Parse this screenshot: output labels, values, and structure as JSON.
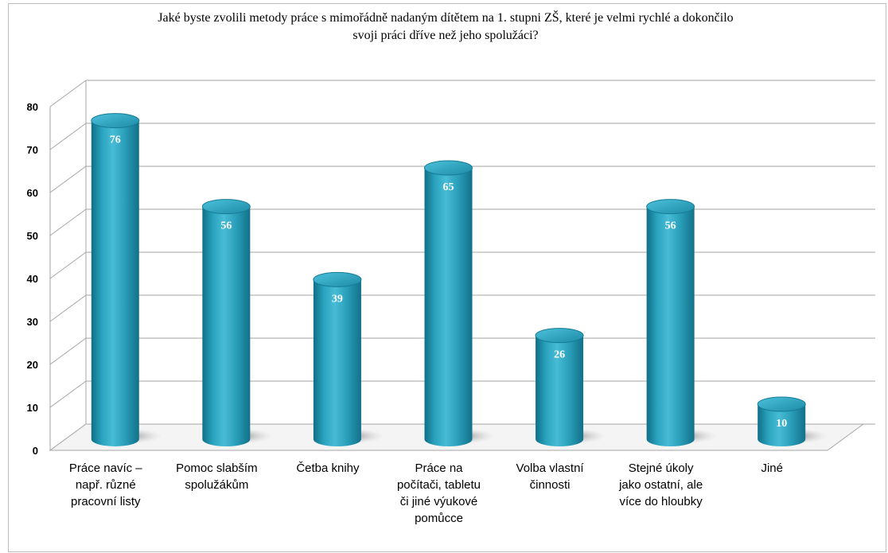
{
  "chart_data": {
    "type": "bar",
    "title_lines": [
      "Jaké byste zvolili metody práce s mimořádně  nadaným dítětem na 1. stupni ZŠ, které je velmi rychlé a dokončilo",
      "svoji práci dříve než jeho spolužáci?"
    ],
    "categories": [
      [
        "Práce navíc –",
        "např. různé",
        "pracovní listy"
      ],
      [
        "Pomoc slabším",
        "spolužákům"
      ],
      [
        "Četba knihy"
      ],
      [
        "Práce na",
        "počítači, tabletu",
        "či jiné výukové",
        "pomůcce"
      ],
      [
        "Volba vlastní",
        "činnosti"
      ],
      [
        "Stejné úkoly",
        "jako ostatní, ale",
        "více do hloubky"
      ],
      [
        "Jiné"
      ]
    ],
    "values": [
      76,
      56,
      39,
      65,
      26,
      56,
      10
    ],
    "ylim": [
      0,
      80
    ],
    "yticks": [
      "0",
      "10",
      "20",
      "30",
      "40",
      "50",
      "60",
      "70",
      "80"
    ],
    "grid": true,
    "style": "3d-cylinder",
    "bar_color": "#2aa3bf",
    "data_labels": true
  }
}
